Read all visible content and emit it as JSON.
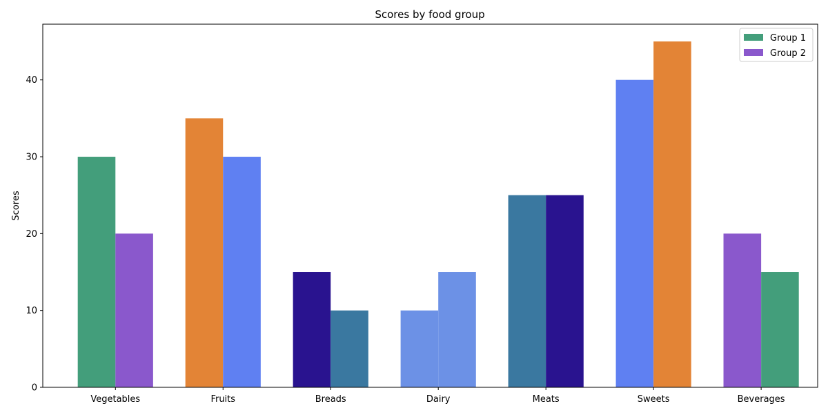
{
  "chart_data": {
    "type": "bar",
    "title": "Scores by food group",
    "xlabel": "",
    "ylabel": "Scores",
    "ylim": [
      0,
      47.25
    ],
    "yticks": [
      0,
      10,
      20,
      30,
      40
    ],
    "grid": false,
    "legend_position": "top-right",
    "categories": [
      "Vegetables",
      "Fruits",
      "Breads",
      "Dairy",
      "Meats",
      "Sweets",
      "Beverages"
    ],
    "series": [
      {
        "name": "Group 1",
        "legend_color": "#439e7b",
        "values": [
          30,
          35,
          15,
          10,
          25,
          40,
          20
        ],
        "colors": [
          "#439e7b",
          "#e38436",
          "#29138f",
          "#6c91e6",
          "#3a78a0",
          "#5f80f2",
          "#8a58cc"
        ]
      },
      {
        "name": "Group 2",
        "legend_color": "#8a58cc",
        "values": [
          20,
          30,
          10,
          15,
          25,
          45,
          15
        ],
        "colors": [
          "#8a58cc",
          "#5f80f2",
          "#3a78a0",
          "#6c91e6",
          "#29138f",
          "#e38436",
          "#439e7b"
        ]
      }
    ]
  }
}
